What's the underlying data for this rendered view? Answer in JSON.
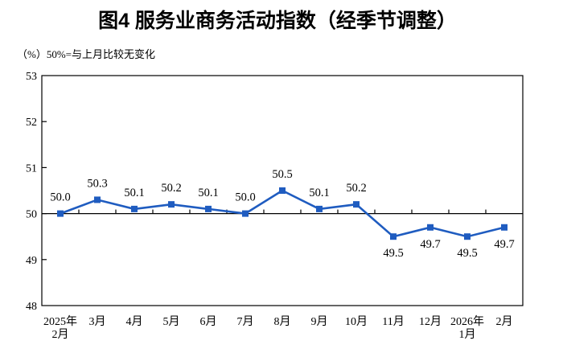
{
  "figure": {
    "title": "图4 服务业商务活动指数（经季节调整）",
    "unit_note": "（%）50%=与上月比较无变化"
  },
  "chart_data": {
    "type": "line",
    "title": "图4 服务业商务活动指数（经季节调整）",
    "subtitle": "（%）50%=与上月比较无变化",
    "categories": [
      "2025年\n2月",
      "3月",
      "4月",
      "5月",
      "6月",
      "7月",
      "8月",
      "9月",
      "10月",
      "11月",
      "12月",
      "2026年\n1月",
      "2月"
    ],
    "values": [
      50.0,
      50.3,
      50.1,
      50.2,
      50.1,
      50.0,
      50.5,
      50.1,
      50.2,
      49.5,
      49.7,
      49.5,
      49.7
    ],
    "data_labels": [
      "50.0",
      "50.3",
      "50.1",
      "50.2",
      "50.1",
      "50.0",
      "50.5",
      "50.1",
      "50.2",
      "49.5",
      "49.7",
      "49.5",
      "49.7"
    ],
    "ylabel": "%",
    "xlabel": "",
    "ylim": [
      48,
      53
    ],
    "ytick_interval": 1,
    "yticks": [
      "48",
      "49",
      "50",
      "51",
      "52",
      "53"
    ],
    "reference_line": 50,
    "grid": false,
    "legend": null,
    "marker": "square",
    "colors": {
      "line": "#1f5cc0",
      "marker": "#1f5cc0",
      "axis": "#000000",
      "text": "#000000",
      "background": "#ffffff"
    }
  }
}
